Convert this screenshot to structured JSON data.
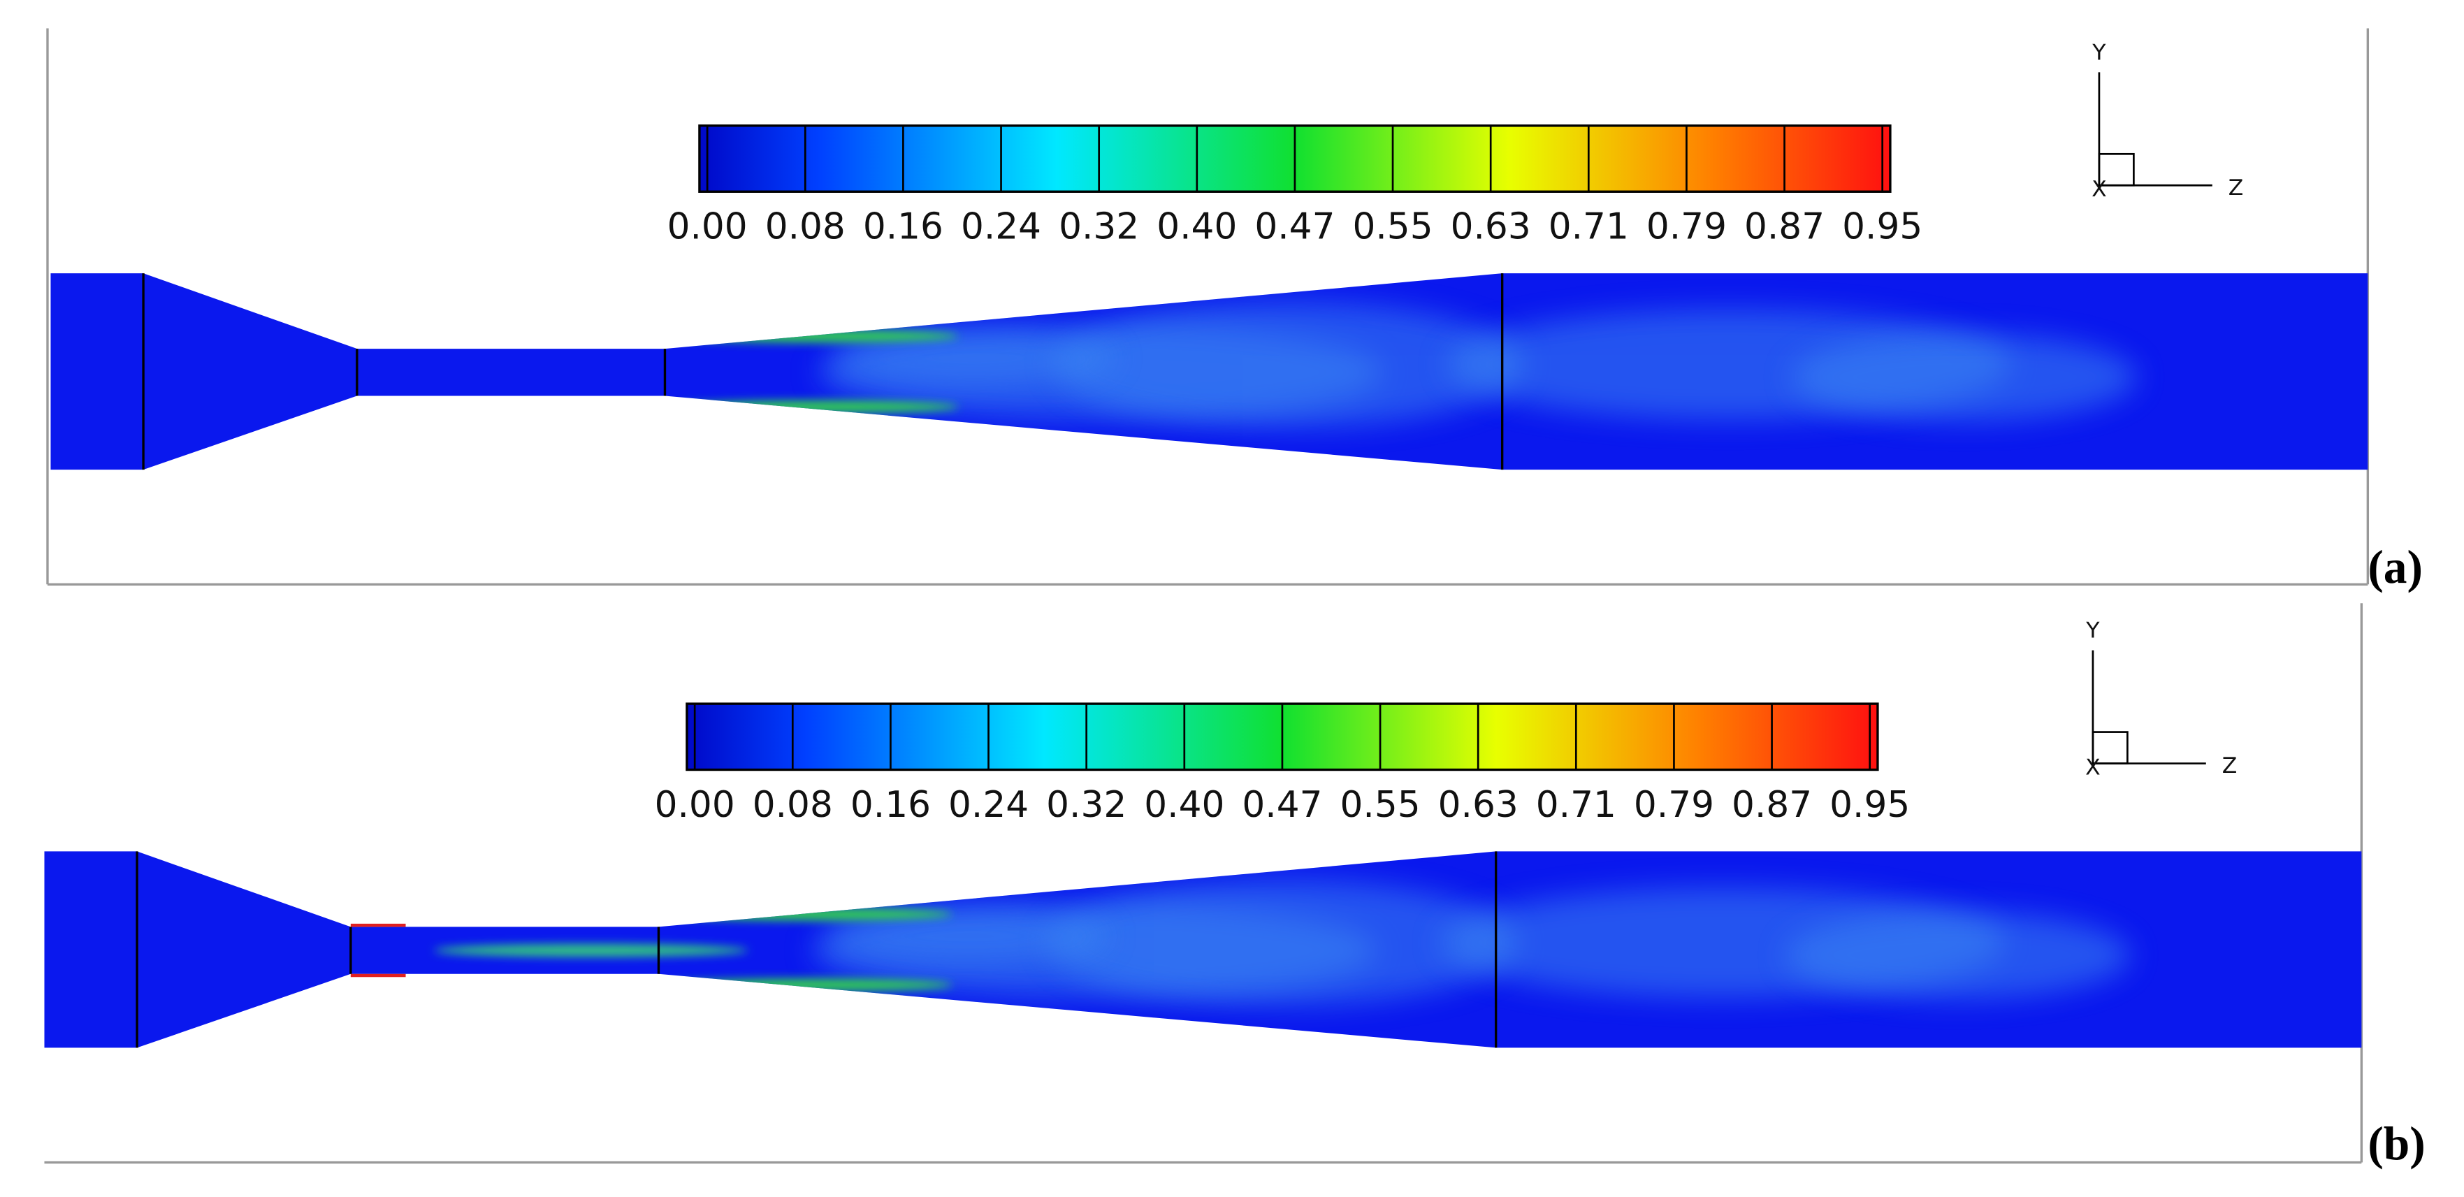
{
  "panels": [
    {
      "label": "(a)",
      "colorbar": {
        "ticks": [
          "0.00",
          "0.08",
          "0.16",
          "0.24",
          "0.32",
          "0.40",
          "0.47",
          "0.55",
          "0.63",
          "0.71",
          "0.79",
          "0.87",
          "0.95"
        ]
      },
      "axes": {
        "y": "Y",
        "z": "Z",
        "x": "X"
      }
    },
    {
      "label": "(b)",
      "colorbar": {
        "ticks": [
          "0.00",
          "0.08",
          "0.16",
          "0.24",
          "0.32",
          "0.40",
          "0.47",
          "0.55",
          "0.63",
          "0.71",
          "0.79",
          "0.87",
          "0.95"
        ]
      },
      "axes": {
        "y": "Y",
        "z": "Z",
        "x": "X"
      }
    }
  ]
}
